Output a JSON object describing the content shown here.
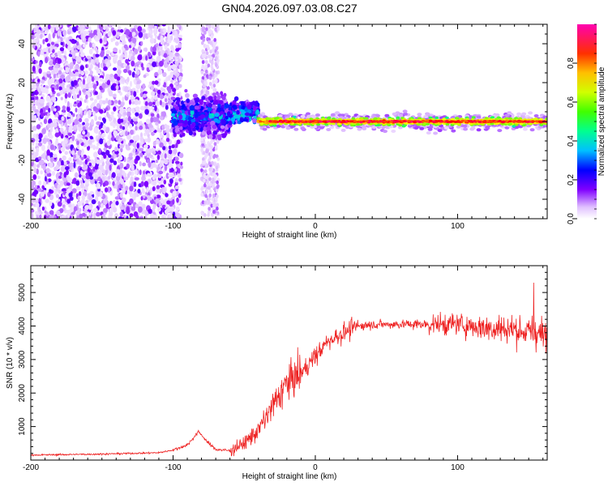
{
  "title": "GN04.2026.097.03.08.C27",
  "chart_data": [
    {
      "type": "heatmap",
      "name": "spectrogram",
      "xlabel": "Height of straight line (km)",
      "ylabel": "Frequency (Hz)",
      "xlim": [
        -200,
        163
      ],
      "ylim": [
        -50,
        50
      ],
      "xticks": [
        -200,
        -100,
        0,
        100
      ],
      "yticks": [
        -40,
        -20,
        0,
        20,
        40
      ],
      "colorbar": {
        "label": "Normalized spectral amplitude",
        "range": [
          0,
          1
        ],
        "ticks": [
          "0.0",
          "0.2",
          "0.4",
          "0.6",
          "0.8"
        ],
        "colors": [
          "#ffffff",
          "#d8b0ff",
          "#8000ff",
          "#0000ff",
          "#00c0ff",
          "#00ff80",
          "#80ff00",
          "#ffff00",
          "#ff8000",
          "#ff0000",
          "#ff00a0"
        ]
      },
      "regions": [
        {
          "x": [
            -200,
            -100
          ],
          "description": "broadband noise",
          "amplitude": 0.15
        },
        {
          "x": [
            -100,
            -40
          ],
          "center_freq": 5,
          "amplitude": 0.4
        },
        {
          "x": [
            -40,
            163
          ],
          "center_freq": 0,
          "amplitude": 0.9
        }
      ]
    },
    {
      "type": "line",
      "name": "snr",
      "xlabel": "Height of straight line (km)",
      "ylabel": "SNR (10 * v/v)",
      "xlim": [
        -200,
        163
      ],
      "ylim": [
        0,
        5800
      ],
      "xticks": [
        -200,
        -100,
        0,
        100
      ],
      "yticks": [
        1000,
        2000,
        3000,
        4000,
        5000
      ],
      "color": "#ee2222",
      "envelope": {
        "x": [
          -200,
          -150,
          -110,
          -100,
          -90,
          -82,
          -75,
          -70,
          -60,
          -50,
          -40,
          -30,
          -20,
          -10,
          0,
          10,
          20,
          30,
          40,
          60,
          80,
          100,
          120,
          140,
          163
        ],
        "y": [
          150,
          180,
          220,
          300,
          450,
          850,
          500,
          320,
          280,
          500,
          900,
          1600,
          2300,
          2600,
          3100,
          3600,
          3800,
          4000,
          4050,
          4050,
          4050,
          4050,
          3950,
          3900,
          3700
        ]
      }
    }
  ]
}
